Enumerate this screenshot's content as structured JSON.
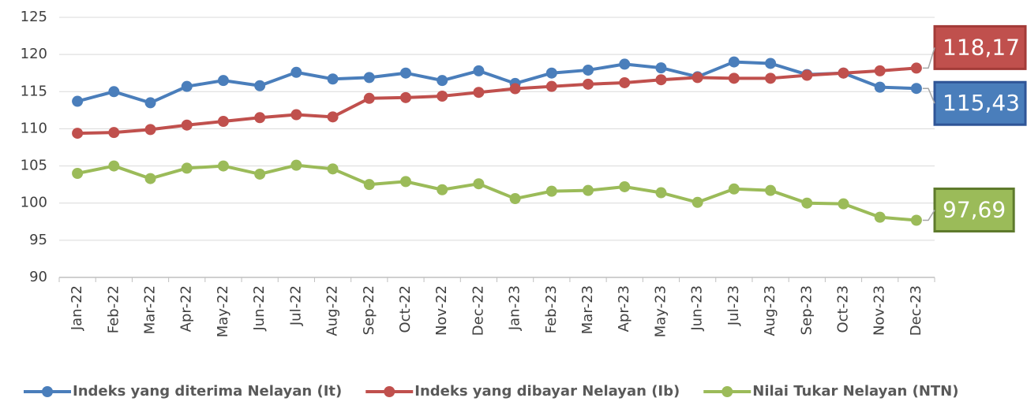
{
  "chart_data": {
    "type": "line",
    "categories": [
      "Jan-22",
      "Feb-22",
      "Mar-22",
      "Apr-22",
      "May-22",
      "Jun-22",
      "Jul-22",
      "Aug-22",
      "Sep-22",
      "Oct-22",
      "Nov-22",
      "Dec-22",
      "Jan-23",
      "Feb-23",
      "Mar-23",
      "Apr-23",
      "May-23",
      "Jun-23",
      "Jul-23",
      "Aug-23",
      "Sep-23",
      "Oct-23",
      "Nov-23",
      "Dec-23"
    ],
    "series": [
      {
        "name": "Indeks yang diterima Nelayan (It)",
        "color": "#4a7ebb",
        "border": "#2f5597",
        "values": [
          113.7,
          115.0,
          113.5,
          115.7,
          116.5,
          115.8,
          117.6,
          116.7,
          116.9,
          117.5,
          116.5,
          117.8,
          116.1,
          117.5,
          117.9,
          118.7,
          118.2,
          117.0,
          119.0,
          118.8,
          117.3,
          117.5,
          115.6,
          115.43
        ],
        "value_labels": [
          null,
          null,
          null,
          null,
          null,
          null,
          null,
          null,
          null,
          null,
          null,
          null,
          null,
          null,
          null,
          null,
          null,
          null,
          null,
          null,
          null,
          null,
          null,
          "115,43"
        ]
      },
      {
        "name": "Indeks yang dibayar Nelayan (Ib)",
        "color": "#c0504d",
        "border": "#a33b38",
        "values": [
          109.4,
          109.5,
          109.9,
          110.5,
          111.0,
          111.5,
          111.9,
          111.6,
          114.1,
          114.2,
          114.4,
          114.9,
          115.4,
          115.7,
          116.0,
          116.2,
          116.6,
          116.9,
          116.8,
          116.8,
          117.2,
          117.5,
          117.8,
          118.17
        ],
        "value_labels": [
          null,
          null,
          null,
          null,
          null,
          null,
          null,
          null,
          null,
          null,
          null,
          null,
          null,
          null,
          null,
          null,
          null,
          null,
          null,
          null,
          null,
          null,
          null,
          "118,17"
        ]
      },
      {
        "name": "Nilai Tukar Nelayan (NTN)",
        "color": "#9bbb59",
        "border": "#5e7a2c",
        "values": [
          104.0,
          105.0,
          103.3,
          104.7,
          105.0,
          103.9,
          105.1,
          104.6,
          102.5,
          102.9,
          101.8,
          102.6,
          100.6,
          101.6,
          101.7,
          102.2,
          101.4,
          100.1,
          101.9,
          101.7,
          100.0,
          99.9,
          98.1,
          97.69
        ],
        "value_labels": [
          null,
          null,
          null,
          null,
          null,
          null,
          null,
          null,
          null,
          null,
          null,
          null,
          null,
          null,
          null,
          null,
          null,
          null,
          null,
          null,
          null,
          null,
          null,
          "97,69"
        ]
      }
    ],
    "ylim": [
      90,
      125
    ],
    "yticks": [
      90,
      95,
      100,
      105,
      110,
      115,
      120,
      125
    ],
    "grid": true,
    "legend": "bottom"
  }
}
